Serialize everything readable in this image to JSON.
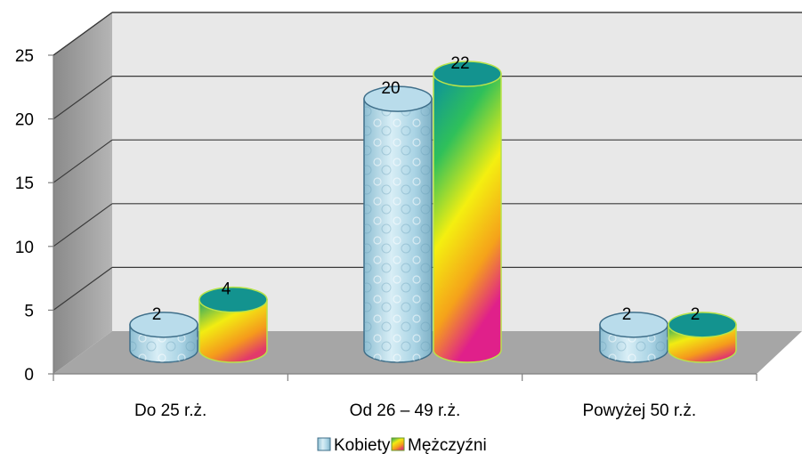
{
  "chart_data": {
    "type": "bar",
    "categories": [
      "Do 25 r.ż.",
      "Od 26 – 49 r.ż.",
      "Powyżej 50 r.ż."
    ],
    "series": [
      {
        "name": "Kobiety",
        "values": [
          2,
          20,
          2
        ],
        "color": "#a8d4e6"
      },
      {
        "name": "Mężczyźni",
        "values": [
          4,
          22,
          2
        ],
        "color": "#f5e400"
      }
    ],
    "yticks": [
      "0",
      "5",
      "10",
      "15",
      "20",
      "25"
    ],
    "ylim": [
      0,
      25
    ],
    "grid": true,
    "legend_position": "bottom",
    "style": "3d-cylinder"
  }
}
